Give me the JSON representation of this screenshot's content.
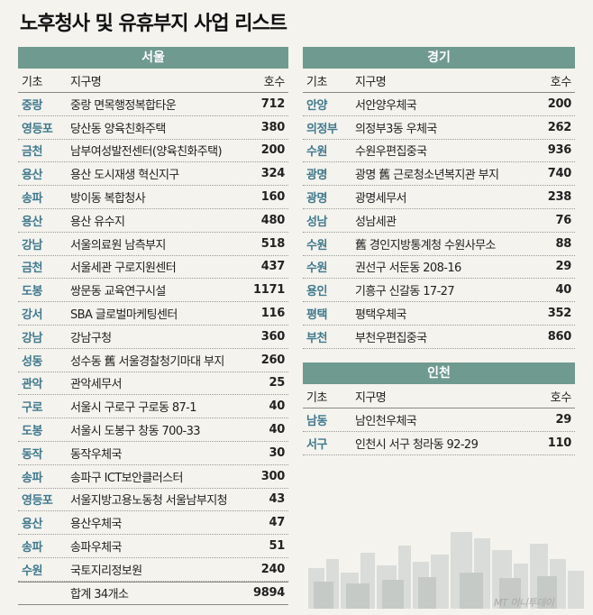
{
  "title": "노후청사 및 유휴부지 사업 리스트",
  "headers": {
    "region": "기초",
    "name": "지구명",
    "count": "호수"
  },
  "seoul": {
    "banner": "서울",
    "rows": [
      {
        "region": "중랑",
        "name": "중랑 면목행정복합타운",
        "count": "712"
      },
      {
        "region": "영등포",
        "name": "당산동 양육친화주택",
        "count": "380"
      },
      {
        "region": "금천",
        "name": "남부여성발전센터(양육친화주택)",
        "count": "200"
      },
      {
        "region": "용산",
        "name": "용산 도시재생 혁신지구",
        "count": "324"
      },
      {
        "region": "송파",
        "name": "방이동 복합청사",
        "count": "160"
      },
      {
        "region": "용산",
        "name": "용산 유수지",
        "count": "480"
      },
      {
        "region": "강남",
        "name": "서울의료원 남측부지",
        "count": "518"
      },
      {
        "region": "금천",
        "name": "서울세관 구로지원센터",
        "count": "437"
      },
      {
        "region": "도봉",
        "name": "쌍문동 교육연구시설",
        "count": "1171"
      },
      {
        "region": "강서",
        "name": "SBA 글로벌마케팅센터",
        "count": "116"
      },
      {
        "region": "강남",
        "name": "강남구청",
        "count": "360"
      },
      {
        "region": "성동",
        "name": "성수동 舊 서울경찰청기마대 부지",
        "count": "260"
      },
      {
        "region": "관악",
        "name": "관악세무서",
        "count": "25"
      },
      {
        "region": "구로",
        "name": "서울시 구로구 구로동 87-1",
        "count": "40"
      },
      {
        "region": "도봉",
        "name": "서울시 도봉구 창동 700-33",
        "count": "40"
      },
      {
        "region": "동작",
        "name": "동작우체국",
        "count": "30"
      },
      {
        "region": "송파",
        "name": "송파구 ICT보안클러스터",
        "count": "300"
      },
      {
        "region": "영등포",
        "name": "서울지방고용노동청 서울남부지청",
        "count": "43"
      },
      {
        "region": "용산",
        "name": "용산우체국",
        "count": "47"
      },
      {
        "region": "송파",
        "name": "송파우체국",
        "count": "51"
      },
      {
        "region": "수원",
        "name": "국토지리정보원",
        "count": "240"
      }
    ],
    "total": {
      "name": "합계 34개소",
      "count": "9894"
    }
  },
  "gyeonggi": {
    "banner": "경기",
    "rows": [
      {
        "region": "안양",
        "name": "서안양우체국",
        "count": "200"
      },
      {
        "region": "의정부",
        "name": "의정부3동 우체국",
        "count": "262"
      },
      {
        "region": "수원",
        "name": "수원우편집중국",
        "count": "936"
      },
      {
        "region": "광명",
        "name": "광명 舊 근로청소년복지관 부지",
        "count": "740"
      },
      {
        "region": "광명",
        "name": "광명세무서",
        "count": "238"
      },
      {
        "region": "성남",
        "name": "성남세관",
        "count": "76"
      },
      {
        "region": "수원",
        "name": "舊 경인지방통계청 수원사무소",
        "count": "88"
      },
      {
        "region": "수원",
        "name": "권선구 서둔동 208-16",
        "count": "29"
      },
      {
        "region": "용인",
        "name": "기흥구 신갈동 17-27",
        "count": "40"
      },
      {
        "region": "평택",
        "name": "평택우체국",
        "count": "352"
      },
      {
        "region": "부천",
        "name": "부천우편집중국",
        "count": "860"
      }
    ]
  },
  "incheon": {
    "banner": "인천",
    "rows": [
      {
        "region": "남동",
        "name": "남인천우체국",
        "count": "29"
      },
      {
        "region": "서구",
        "name": "인천시 서구 청라동 92-29",
        "count": "110"
      }
    ]
  },
  "credit": "MT 머니투데이",
  "colors": {
    "banner": "#6f9a8f",
    "region": "#3f7a8f",
    "background": "#f4f3ed"
  }
}
